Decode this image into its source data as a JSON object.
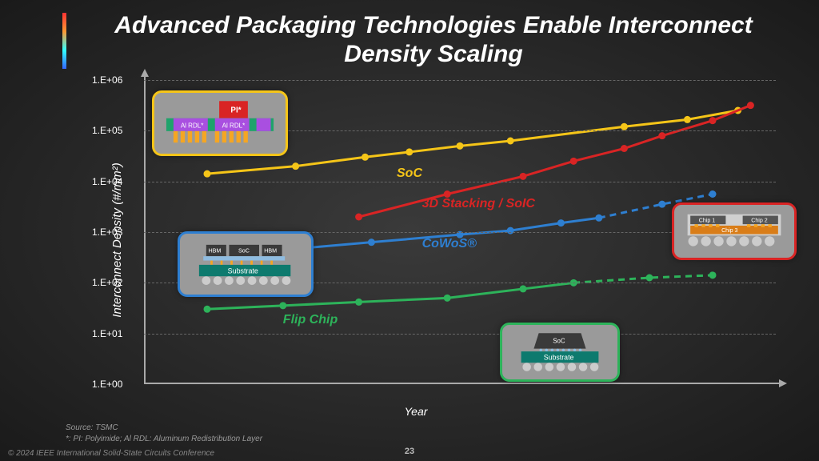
{
  "title": "Advanced Packaging Technologies Enable Interconnect Density Scaling",
  "chart": {
    "type": "line",
    "ylabel": "Interconnect Density (#/mm²)",
    "xlabel": "Year",
    "yscale": "log",
    "ylim": [
      1,
      1000000
    ],
    "yticks": [
      "1.E+00",
      "1.E+01",
      "1.E+02",
      "1.E+03",
      "1.E+04",
      "1.E+05",
      "1.E+06"
    ],
    "background": "transparent",
    "grid_color": "#666666",
    "axis_color": "#aaaaaa",
    "series": {
      "soc": {
        "label": "SoC",
        "color": "#f5c518",
        "line_width": 3,
        "points_x": [
          0.1,
          0.24,
          0.35,
          0.42,
          0.5,
          0.58,
          0.76,
          0.86,
          0.94
        ],
        "points_y": [
          4.15,
          4.3,
          4.48,
          4.58,
          4.7,
          4.8,
          5.08,
          5.22,
          5.4
        ],
        "label_pos": {
          "x": 0.4,
          "y": 4.3
        }
      },
      "soic": {
        "label": "3D Stacking / SoIC",
        "color": "#d92424",
        "line_width": 3,
        "points_x": [
          0.34,
          0.48,
          0.6,
          0.68,
          0.76,
          0.82,
          0.9,
          0.96
        ],
        "points_y": [
          3.3,
          3.75,
          4.1,
          4.4,
          4.65,
          4.9,
          5.2,
          5.5
        ],
        "label_pos": {
          "x": 0.44,
          "y": 3.7
        }
      },
      "cowos": {
        "label": "CoWoS®",
        "color": "#2e7fd1",
        "line_width": 3,
        "points_x": [
          0.22,
          0.36,
          0.5,
          0.58,
          0.66,
          0.72
        ],
        "points_y": [
          2.65,
          2.8,
          2.95,
          3.03,
          3.18,
          3.28
        ],
        "dash_from": 0.72,
        "dash_points_x": [
          0.72,
          0.82,
          0.9
        ],
        "dash_points_y": [
          3.28,
          3.55,
          3.75
        ],
        "label_pos": {
          "x": 0.44,
          "y": 2.9
        }
      },
      "flipchip": {
        "label": "Flip Chip",
        "color": "#2db35a",
        "line_width": 3,
        "points_x": [
          0.1,
          0.22,
          0.34,
          0.48,
          0.6,
          0.68
        ],
        "points_y": [
          1.48,
          1.55,
          1.62,
          1.7,
          1.88,
          2.0
        ],
        "dash_from": 0.68,
        "dash_points_x": [
          0.68,
          0.8,
          0.9
        ],
        "dash_points_y": [
          2.0,
          2.1,
          2.15
        ],
        "label_pos": {
          "x": 0.22,
          "y": 1.4
        }
      }
    }
  },
  "callouts": {
    "soc": {
      "border_color": "#f5c518",
      "labels": {
        "pi": "PI*",
        "rdl1": "Al RDL*",
        "rdl2": "Al RDL*"
      },
      "colors": {
        "pi": "#d92424",
        "rdl": "#a94fe0",
        "metal": "#f5a623",
        "cap": "#1fa36b"
      }
    },
    "cowos": {
      "border_color": "#2e7fd1",
      "labels": {
        "hbm1": "HBM",
        "soc": "SoC",
        "hbm2": "HBM",
        "sub": "Substrate"
      },
      "colors": {
        "die": "#3a3a3a",
        "sub": "#0d7a6e",
        "bump": "#cccccc",
        "interposer": "#8fbce0"
      }
    },
    "flipchip": {
      "border_color": "#2db35a",
      "labels": {
        "soc": "SoC",
        "sub": "Substrate"
      },
      "colors": {
        "die": "#3a3a3a",
        "sub": "#0d7a6e",
        "bump": "#cccccc"
      }
    },
    "soic": {
      "border_color": "#d92424",
      "labels": {
        "c1": "Chip 1",
        "c2": "Chip 2",
        "c3": "Chip 3"
      },
      "colors": {
        "chip": "#555555",
        "tsv": "#f5a623",
        "bump": "#cccccc",
        "c3": "#d97d18"
      }
    }
  },
  "source": "Source: TSMC",
  "footnote": "*: PI: Polyimide; Al RDL: Aluminum Redistribution Layer",
  "copyright": "© 2024 IEEE International Solid-State Circuits Conference",
  "page": "23"
}
